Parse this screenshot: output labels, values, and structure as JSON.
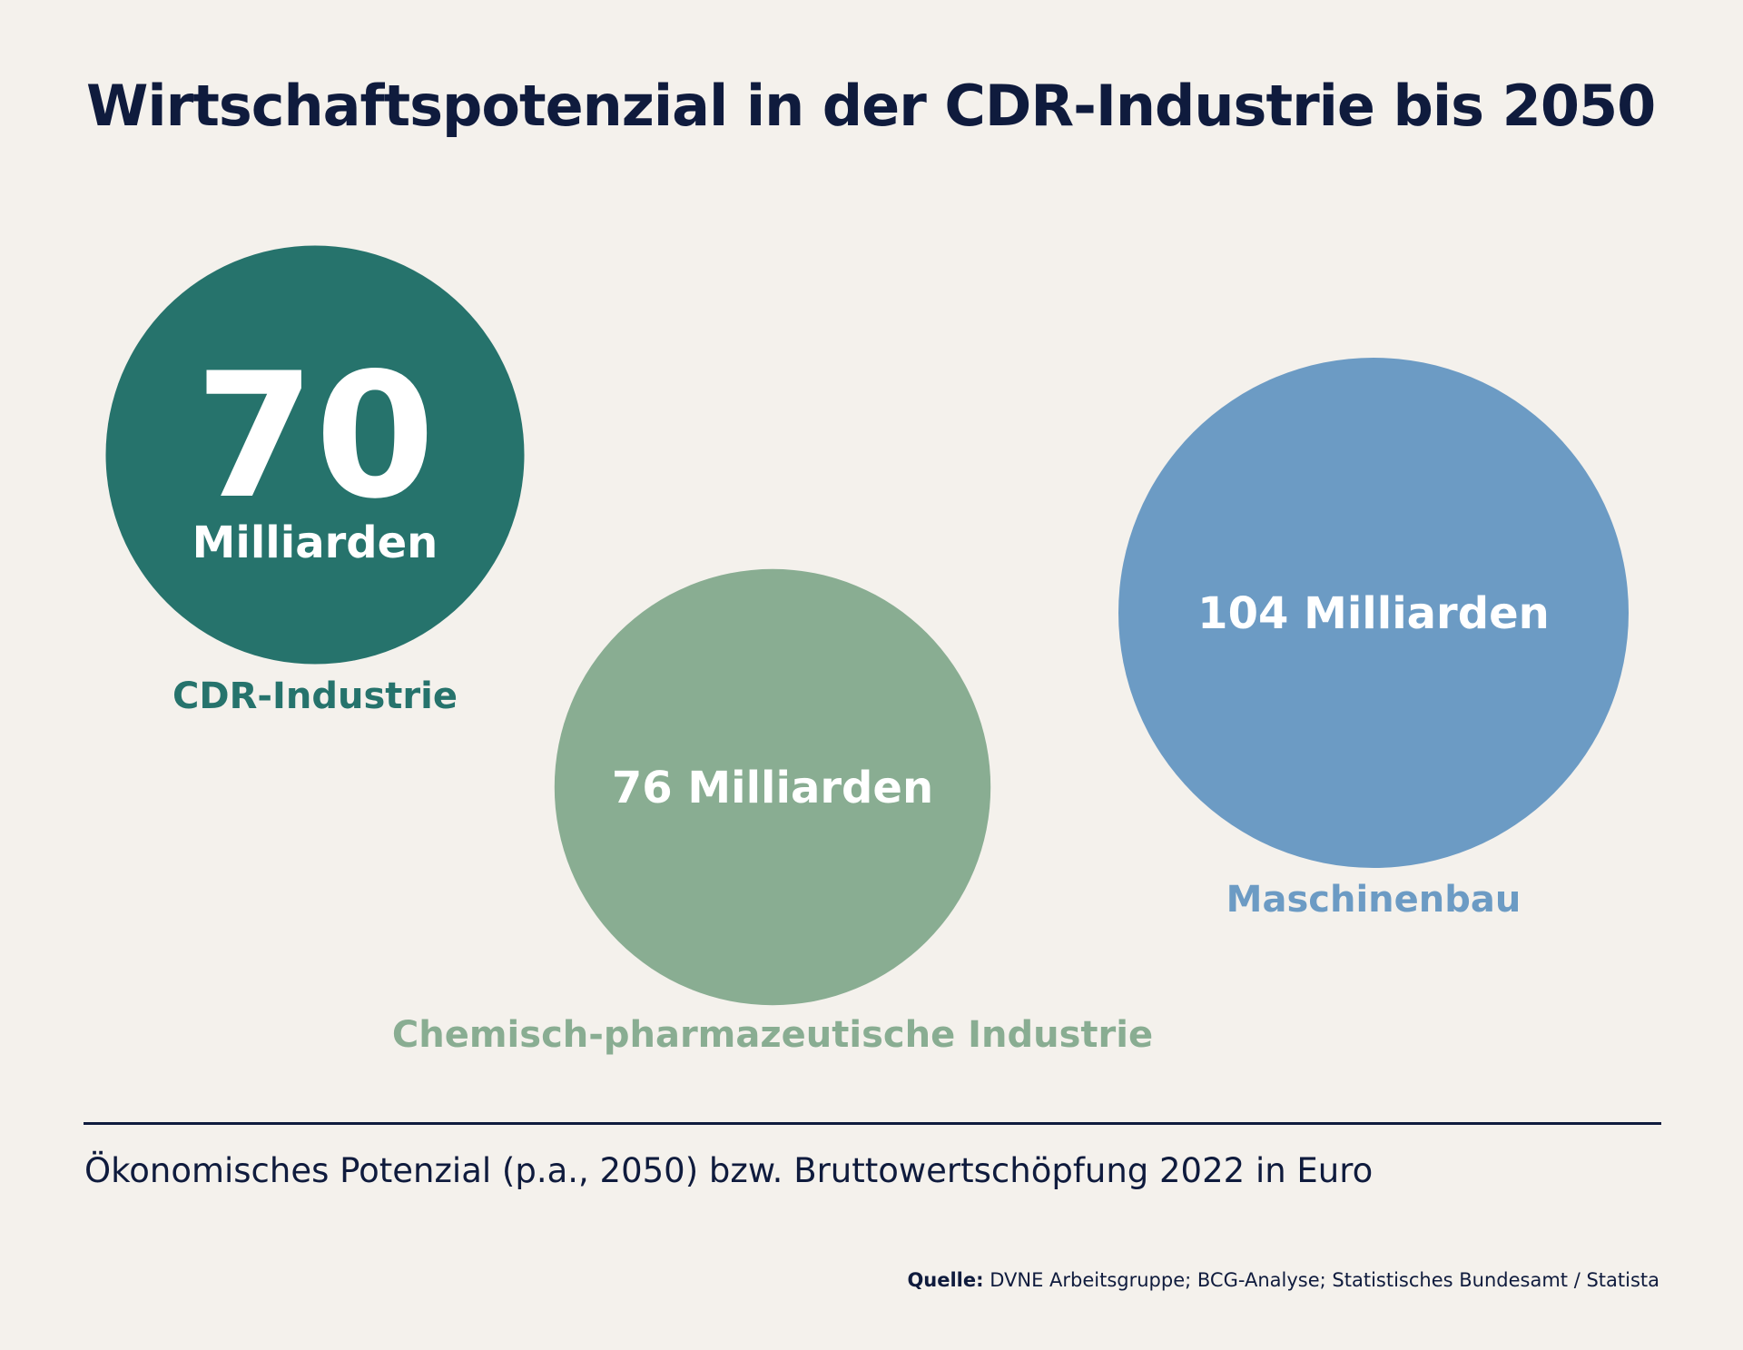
{
  "title": "Wirtschaftspotenzial in der CDR-Industrie bis 2050",
  "chart_data": {
    "type": "bubble",
    "unit_label": "Milliarden",
    "items": [
      {
        "category": "CDR-Industrie",
        "value": 70,
        "value_text": "70",
        "unit_text": "Milliarden",
        "color": "#26736c"
      },
      {
        "category": "Chemisch-pharmazeutische Industrie",
        "value": 76,
        "value_text": "76 Milliarden",
        "color": "#89ad92"
      },
      {
        "category": "Maschinenbau",
        "value": 104,
        "value_text": "104 Milliarden",
        "color": "#6c9bc4"
      }
    ]
  },
  "footnote": "Ökonomisches Potenzial (p.a., 2050) bzw. Bruttowertschöpfung 2022 in Euro",
  "source": {
    "label": "Quelle:",
    "text": " DVNE Arbeitsgruppe; BCG-Analyse; Statistisches Bundesamt / Statista"
  }
}
